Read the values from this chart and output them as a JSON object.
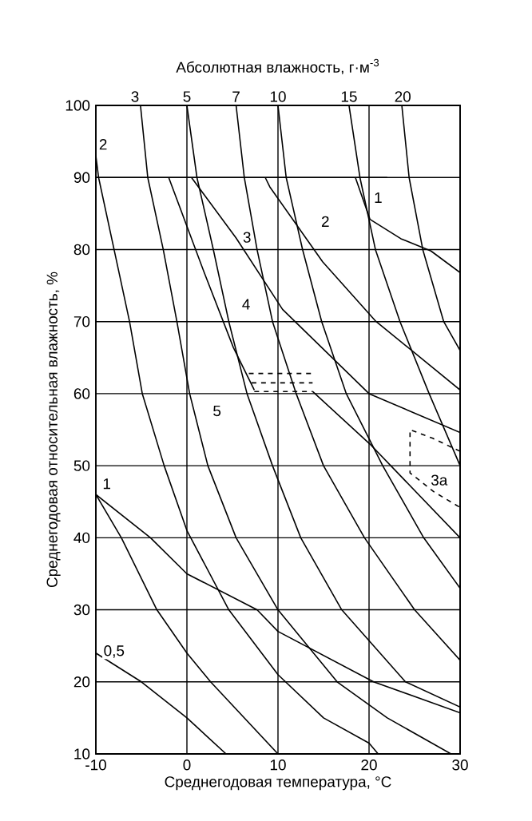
{
  "chart_data": {
    "type": "line",
    "xlabel": "Среднегодовая температура, °C",
    "ylabel": "Среднегодовая относительная влажность, %",
    "x2label": "Абсолютная влажность, г·м$^{-3}$",
    "xlim": [
      -10,
      30
    ],
    "xticks": [
      -10,
      0,
      10,
      20,
      30
    ],
    "ylim": [
      10,
      100
    ],
    "yticks": [
      10,
      20,
      30,
      40,
      50,
      60,
      70,
      80,
      90,
      100
    ],
    "grid": true,
    "marker": "none",
    "series": [
      {
        "color": "#000000",
        "line_style": "solid",
        "x": [
          -10,
          -5,
          0,
          4.3
        ],
        "values": [
          24,
          20,
          15,
          10
        ]
      },
      {
        "color": "#000000",
        "line_style": "solid",
        "x": [
          -10,
          -7.2,
          -3.3,
          0,
          2.6,
          10
        ],
        "values": [
          46,
          40,
          30,
          24,
          20,
          10
        ]
      },
      {
        "color": "#000000",
        "line_style": "solid",
        "x": [
          -10,
          -9.7,
          -8,
          -6.3,
          -4.9,
          -2.5,
          0,
          4.6,
          10,
          15,
          20,
          21
        ],
        "values": [
          93,
          90,
          80,
          70,
          60,
          50,
          41,
          30,
          21,
          15,
          11.5,
          10
        ]
      },
      {
        "color": "#000000",
        "line_style": "solid",
        "x": [
          -5.1,
          -4.3,
          -2.6,
          -1.1,
          0.3,
          2.3,
          5.4,
          10,
          16.5,
          22,
          29
        ],
        "values": [
          100,
          90,
          80,
          70,
          60,
          50,
          40,
          30,
          20,
          15,
          10
        ]
      },
      {
        "color": "#000000",
        "line_style": "solid",
        "x": [
          0,
          1.1,
          2.9,
          4.6,
          6.6,
          9.4,
          12.5,
          17,
          24,
          30
        ],
        "values": [
          100,
          90,
          80,
          70,
          60,
          50,
          40,
          30,
          20,
          16.5
        ]
      },
      {
        "color": "#000000",
        "line_style": "solid",
        "x": [
          5.4,
          6.3,
          7.7,
          9.4,
          12,
          15,
          19.5,
          25,
          30
        ],
        "values": [
          100,
          90,
          80,
          70,
          60,
          50,
          40,
          30,
          23
        ]
      },
      {
        "color": "#000000",
        "line_style": "solid",
        "x": [
          10,
          10.9,
          12.7,
          14.8,
          17.5,
          21.5,
          26,
          30
        ],
        "values": [
          100,
          90,
          80,
          70,
          60,
          50,
          40,
          33
        ]
      },
      {
        "color": "#000000",
        "line_style": "solid",
        "x": [
          17.8,
          19,
          20.7,
          23.4,
          26.6,
          30
        ],
        "values": [
          100,
          90,
          80,
          70,
          60,
          50
        ]
      },
      {
        "color": "#000000",
        "line_style": "solid",
        "x": [
          23.6,
          24.4,
          25.9,
          28.2,
          30
        ],
        "values": [
          100,
          90,
          80,
          70,
          66
        ]
      },
      {
        "color": "#000000",
        "line_style": "solid",
        "x": [
          -10,
          22
        ],
        "values": [
          90,
          90
        ]
      },
      {
        "color": "#000000",
        "line_style": "solid",
        "x": [
          18.5,
          20.1,
          23.5,
          26.8,
          30
        ],
        "values": [
          90,
          84.2,
          81.5,
          79.8,
          76.8
        ]
      },
      {
        "color": "#000000",
        "line_style": "solid",
        "x": [
          8.6,
          9.1,
          14.9,
          20.7,
          30
        ],
        "values": [
          90,
          88.7,
          78.3,
          70.1,
          60.5
        ]
      },
      {
        "color": "#000000",
        "line_style": "solid",
        "x": [
          0.5,
          5.4,
          10.5,
          20,
          30
        ],
        "values": [
          90,
          81.6,
          71.7,
          60,
          54.6
        ]
      },
      {
        "color": "#000000",
        "line_style": "solid",
        "x": [
          -2,
          1.9,
          5.1,
          7.4
        ],
        "values": [
          90,
          76.8,
          66.4,
          60.5
        ]
      },
      {
        "color": "#000000",
        "line_style": "solid",
        "x": [
          13.8,
          20.1,
          30
        ],
        "values": [
          60.3,
          53,
          40
        ]
      },
      {
        "color": "#000000",
        "line_style": "solid",
        "x": [
          -10,
          -4,
          0,
          7.7,
          10,
          20.5,
          30
        ],
        "values": [
          46,
          40,
          35,
          30,
          27,
          20,
          15.7
        ]
      },
      {
        "color": "#000000",
        "line_style": "dashed",
        "x": [
          6.8,
          13.8
        ],
        "values": [
          62.8,
          62.8
        ]
      },
      {
        "color": "#000000",
        "line_style": "dashed",
        "x": [
          7.1,
          13.8
        ],
        "values": [
          61.5,
          61.5
        ]
      },
      {
        "color": "#000000",
        "line_style": "dashed",
        "x": [
          7.4,
          13.8
        ],
        "values": [
          60.3,
          60.3
        ]
      },
      {
        "color": "#000000",
        "line_style": "dashed",
        "x": [
          30,
          27,
          24.5,
          24.5,
          27.1,
          30
        ],
        "values": [
          52,
          53.8,
          55,
          49,
          46.4,
          44.2
        ]
      }
    ],
    "annotations": [
      {
        "text": "1",
        "x": 21,
        "y": 87.2
      },
      {
        "text": "2",
        "x": 15.2,
        "y": 83.9
      },
      {
        "text": "3",
        "x": 6.6,
        "y": 81.7
      },
      {
        "text": "4",
        "x": 6.5,
        "y": 72.4
      },
      {
        "text": "5",
        "x": 3.3,
        "y": 57.6
      },
      {
        "text": "3а",
        "x": 27.7,
        "y": 48
      },
      {
        "text": "2",
        "x": -9.2,
        "y": 94.6
      },
      {
        "text": "1",
        "x": -8.8,
        "y": 47.5
      },
      {
        "text": "0,5",
        "x": -8,
        "y": 24.2
      },
      {
        "text": "3",
        "x": -5.7,
        "y": 100
      },
      {
        "text": "5",
        "x": 0,
        "y": 100
      },
      {
        "text": "7",
        "x": 5.4,
        "y": 100
      },
      {
        "text": "10",
        "x": 10,
        "y": 100
      },
      {
        "text": "15",
        "x": 17.8,
        "y": 100
      },
      {
        "text": "20",
        "x": 23.7,
        "y": 100
      }
    ]
  }
}
